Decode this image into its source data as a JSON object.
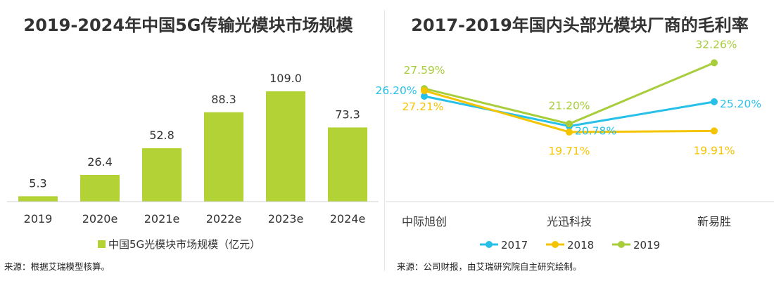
{
  "chart_data": [
    {
      "type": "bar",
      "title": "2019-2024年中国5G传输光模块市场规模",
      "categories": [
        "2019",
        "2020e",
        "2021e",
        "2022e",
        "2023e",
        "2024e"
      ],
      "series": [
        {
          "name": "中国5G光模块市场规模（亿元）",
          "values": [
            5.3,
            26.4,
            52.8,
            88.3,
            109.0,
            73.3
          ],
          "color": "#b2d235"
        }
      ],
      "value_labels": [
        "5.3",
        "26.4",
        "52.8",
        "88.3",
        "109.0",
        "73.3"
      ],
      "ylim": [
        0,
        120
      ],
      "grid": false,
      "legend_position": "bottom",
      "source": "来源：根据艾瑞模型核算。"
    },
    {
      "type": "line",
      "title": "2017-2019年国内头部光模块厂商的毛利率",
      "categories": [
        "中际旭创",
        "光迅科技",
        "新易胜"
      ],
      "series": [
        {
          "name": "2017",
          "values": [
            26.2,
            20.78,
            25.2
          ],
          "labels": [
            "26.20%",
            "20.78%",
            "25.20%"
          ],
          "color": "#27c0e8"
        },
        {
          "name": "2018",
          "values": [
            27.21,
            19.71,
            19.91
          ],
          "labels": [
            "27.21%",
            "19.71%",
            "19.91%"
          ],
          "color": "#f5c400"
        },
        {
          "name": "2019",
          "values": [
            27.59,
            21.2,
            32.26
          ],
          "labels": [
            "27.59%",
            "21.20%",
            "32.26%"
          ],
          "color": "#a8cd3a"
        }
      ],
      "ylim": [
        8,
        36
      ],
      "grid": false,
      "legend_position": "bottom",
      "source": "来源：公司财报，由艾瑞研究院自主研究绘制。"
    }
  ]
}
